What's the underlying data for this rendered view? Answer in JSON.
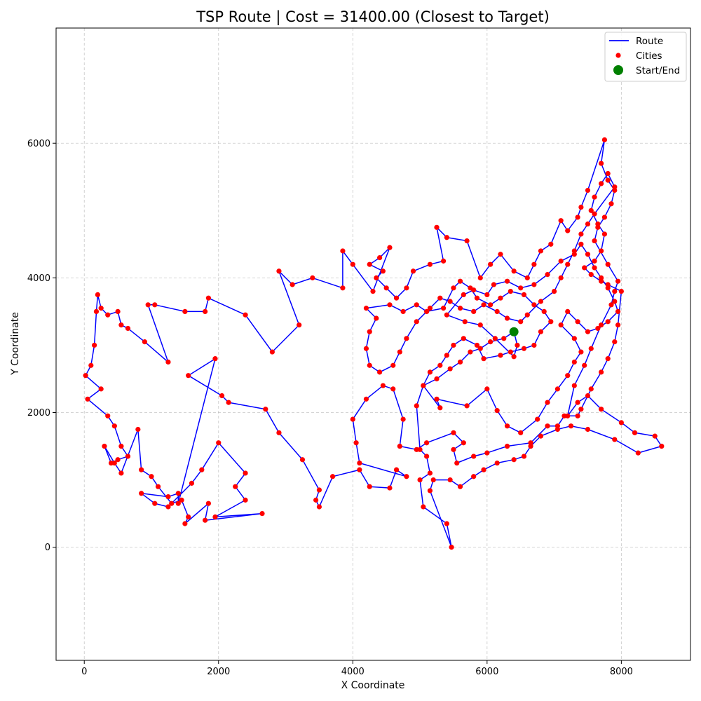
{
  "chart_data": {
    "type": "scatter",
    "title": "TSP Route | Cost = 31400.00 (Closest to Target)",
    "xlabel": "X Coordinate",
    "ylabel": "Y Coordinate",
    "xlim": [
      -420,
      9030
    ],
    "ylim": [
      -1680,
      7710
    ],
    "xticks": [
      0,
      2000,
      4000,
      6000,
      8000
    ],
    "yticks": [
      0,
      2000,
      4000,
      6000
    ],
    "grid": true,
    "legend_position": "top-right",
    "colors": {
      "route": "#0000ff",
      "cities": "#ff0000",
      "start": "#008000",
      "grid": "#b0b0b0"
    },
    "legend": [
      {
        "label": "Route",
        "kind": "line",
        "color": "#0000ff"
      },
      {
        "label": "Cities",
        "kind": "dot",
        "color": "#ff0000"
      },
      {
        "label": "Start/End",
        "kind": "bigdot",
        "color": "#008000"
      }
    ],
    "start": [
      6400,
      3200
    ],
    "route": [
      [
        6400,
        3200
      ],
      [
        6450,
        3000
      ],
      [
        6400,
        2830
      ],
      [
        6120,
        3100
      ],
      [
        5900,
        3300
      ],
      [
        5670,
        3350
      ],
      [
        5400,
        3450
      ],
      [
        5650,
        3750
      ],
      [
        5800,
        3820
      ],
      [
        6000,
        3750
      ],
      [
        6100,
        3900
      ],
      [
        6300,
        3950
      ],
      [
        6500,
        3850
      ],
      [
        6700,
        3900
      ],
      [
        6900,
        4050
      ],
      [
        7100,
        4250
      ],
      [
        7300,
        4350
      ],
      [
        7400,
        4500
      ],
      [
        7500,
        4350
      ],
      [
        7600,
        4150
      ],
      [
        7700,
        4000
      ],
      [
        7800,
        3850
      ],
      [
        7900,
        3650
      ],
      [
        7950,
        3500
      ],
      [
        7800,
        3350
      ],
      [
        7650,
        3250
      ],
      [
        7500,
        3200
      ],
      [
        7350,
        3350
      ],
      [
        7200,
        3500
      ],
      [
        7100,
        3300
      ],
      [
        7300,
        3100
      ],
      [
        7400,
        2900
      ],
      [
        7300,
        2750
      ],
      [
        7200,
        2550
      ],
      [
        7050,
        2350
      ],
      [
        6900,
        2150
      ],
      [
        6750,
        1900
      ],
      [
        6500,
        1700
      ],
      [
        6300,
        1800
      ],
      [
        6150,
        2030
      ],
      [
        6000,
        2350
      ],
      [
        5700,
        2100
      ],
      [
        5250,
        2200
      ],
      [
        5300,
        2070
      ],
      [
        5050,
        2400
      ],
      [
        4950,
        2100
      ],
      [
        5000,
        1450
      ],
      [
        5100,
        1350
      ],
      [
        5150,
        1100
      ],
      [
        5000,
        1000
      ],
      [
        5050,
        600
      ],
      [
        5400,
        350
      ],
      [
        5470,
        0
      ],
      [
        5150,
        840
      ],
      [
        5200,
        1000
      ],
      [
        5450,
        1000
      ],
      [
        5600,
        900
      ],
      [
        5800,
        1050
      ],
      [
        5950,
        1150
      ],
      [
        6150,
        1250
      ],
      [
        6400,
        1300
      ],
      [
        6550,
        1350
      ],
      [
        6650,
        1500
      ],
      [
        6800,
        1650
      ],
      [
        7050,
        1750
      ],
      [
        7250,
        1800
      ],
      [
        7500,
        1750
      ],
      [
        7900,
        1600
      ],
      [
        8250,
        1400
      ],
      [
        8600,
        1500
      ],
      [
        8500,
        1650
      ],
      [
        8200,
        1700
      ],
      [
        8000,
        1850
      ],
      [
        7700,
        2050
      ],
      [
        7500,
        2250
      ],
      [
        7350,
        2150
      ],
      [
        7200,
        1950
      ],
      [
        7300,
        2400
      ],
      [
        7450,
        2700
      ],
      [
        7550,
        2950
      ],
      [
        7700,
        3300
      ],
      [
        7850,
        3600
      ],
      [
        7900,
        3800
      ],
      [
        7950,
        3950
      ],
      [
        7800,
        4200
      ],
      [
        7600,
        4550
      ],
      [
        7650,
        4750
      ],
      [
        7750,
        4900
      ],
      [
        7850,
        5100
      ],
      [
        7900,
        5300
      ],
      [
        7800,
        5450
      ],
      [
        7700,
        5700
      ],
      [
        7750,
        6050
      ],
      [
        7500,
        5300
      ],
      [
        7400,
        5050
      ],
      [
        7350,
        4900
      ],
      [
        7200,
        4700
      ],
      [
        7100,
        4850
      ],
      [
        6950,
        4500
      ],
      [
        6800,
        4400
      ],
      [
        6700,
        4200
      ],
      [
        6600,
        4000
      ],
      [
        6400,
        4100
      ],
      [
        6200,
        4350
      ],
      [
        6050,
        4200
      ],
      [
        5900,
        4000
      ],
      [
        5700,
        4550
      ],
      [
        5400,
        4600
      ],
      [
        5250,
        4750
      ],
      [
        5350,
        4250
      ],
      [
        5150,
        4200
      ],
      [
        4900,
        4100
      ],
      [
        4800,
        3850
      ],
      [
        4650,
        3700
      ],
      [
        4500,
        3850
      ],
      [
        4350,
        4000
      ],
      [
        4450,
        4100
      ],
      [
        4250,
        4200
      ],
      [
        4400,
        4300
      ],
      [
        4550,
        4450
      ],
      [
        4300,
        3800
      ],
      [
        4000,
        4200
      ],
      [
        3850,
        4400
      ],
      [
        3850,
        3850
      ],
      [
        3400,
        4000
      ],
      [
        3100,
        3900
      ],
      [
        2900,
        4100
      ],
      [
        3200,
        3300
      ],
      [
        2800,
        2900
      ],
      [
        2400,
        3450
      ],
      [
        1850,
        3700
      ],
      [
        1800,
        3500
      ],
      [
        1500,
        3500
      ],
      [
        1050,
        3600
      ],
      [
        950,
        3600
      ],
      [
        1250,
        2750
      ],
      [
        900,
        3050
      ],
      [
        650,
        3250
      ],
      [
        550,
        3300
      ],
      [
        500,
        3500
      ],
      [
        350,
        3450
      ],
      [
        250,
        3550
      ],
      [
        200,
        3750
      ],
      [
        180,
        3500
      ],
      [
        150,
        3000
      ],
      [
        100,
        2700
      ],
      [
        20,
        2550
      ],
      [
        250,
        2350
      ],
      [
        50,
        2200
      ],
      [
        350,
        1950
      ],
      [
        450,
        1800
      ],
      [
        550,
        1500
      ],
      [
        650,
        1350
      ],
      [
        500,
        1300
      ],
      [
        400,
        1250
      ],
      [
        300,
        1500
      ],
      [
        450,
        1250
      ],
      [
        550,
        1100
      ],
      [
        800,
        1750
      ],
      [
        850,
        1150
      ],
      [
        1000,
        1050
      ],
      [
        1100,
        900
      ],
      [
        1300,
        650
      ],
      [
        1450,
        700
      ],
      [
        1550,
        450
      ],
      [
        1500,
        350
      ],
      [
        1850,
        650
      ],
      [
        1800,
        400
      ],
      [
        2650,
        500
      ],
      [
        1950,
        450
      ],
      [
        2400,
        700
      ],
      [
        2250,
        900
      ],
      [
        2400,
        1100
      ],
      [
        2000,
        1550
      ],
      [
        1750,
        1150
      ],
      [
        1600,
        950
      ],
      [
        1250,
        600
      ],
      [
        1050,
        650
      ],
      [
        850,
        800
      ],
      [
        1250,
        750
      ],
      [
        1400,
        800
      ],
      [
        1400,
        650
      ],
      [
        1950,
        2800
      ],
      [
        1550,
        2550
      ],
      [
        2050,
        2250
      ],
      [
        2150,
        2150
      ],
      [
        2700,
        2050
      ],
      [
        2900,
        1700
      ],
      [
        3250,
        1300
      ],
      [
        3500,
        850
      ],
      [
        3450,
        700
      ],
      [
        3500,
        600
      ],
      [
        3700,
        1050
      ],
      [
        4100,
        1150
      ],
      [
        4250,
        900
      ],
      [
        4550,
        880
      ],
      [
        4650,
        1150
      ],
      [
        4800,
        1050
      ],
      [
        4100,
        1250
      ],
      [
        4050,
        1550
      ],
      [
        4000,
        1900
      ],
      [
        4200,
        2200
      ],
      [
        4450,
        2400
      ],
      [
        4600,
        2350
      ],
      [
        4750,
        1900
      ],
      [
        4700,
        1500
      ],
      [
        4950,
        1450
      ],
      [
        5100,
        1550
      ],
      [
        5500,
        1700
      ],
      [
        5650,
        1550
      ],
      [
        5500,
        1450
      ],
      [
        5550,
        1250
      ],
      [
        5800,
        1350
      ],
      [
        6000,
        1400
      ],
      [
        6300,
        1500
      ],
      [
        6650,
        1550
      ],
      [
        6900,
        1800
      ],
      [
        7050,
        1800
      ],
      [
        7150,
        1950
      ],
      [
        7350,
        1950
      ],
      [
        7400,
        2050
      ],
      [
        7550,
        2350
      ],
      [
        7700,
        2600
      ],
      [
        7800,
        2800
      ],
      [
        7900,
        3050
      ],
      [
        7950,
        3300
      ],
      [
        8000,
        3800
      ],
      [
        7800,
        3900
      ],
      [
        7700,
        3950
      ],
      [
        7550,
        4050
      ],
      [
        7450,
        4150
      ],
      [
        7600,
        4250
      ],
      [
        7700,
        4400
      ],
      [
        7750,
        4650
      ],
      [
        7650,
        4800
      ],
      [
        7550,
        5000
      ],
      [
        7600,
        5200
      ],
      [
        7700,
        5400
      ],
      [
        7800,
        5550
      ],
      [
        7900,
        5350
      ],
      [
        7600,
        4950
      ],
      [
        7500,
        4800
      ],
      [
        7400,
        4650
      ],
      [
        7300,
        4400
      ],
      [
        7200,
        4200
      ],
      [
        7100,
        4000
      ],
      [
        7000,
        3800
      ],
      [
        6800,
        3650
      ],
      [
        6600,
        3450
      ],
      [
        6500,
        3350
      ],
      [
        6300,
        3400
      ],
      [
        6150,
        3500
      ],
      [
        5950,
        3600
      ],
      [
        5800,
        3500
      ],
      [
        5600,
        3550
      ],
      [
        5450,
        3650
      ],
      [
        5300,
        3700
      ],
      [
        5150,
        3550
      ],
      [
        4950,
        3350
      ],
      [
        4800,
        3100
      ],
      [
        4700,
        2900
      ],
      [
        4600,
        2700
      ],
      [
        4400,
        2600
      ],
      [
        4250,
        2700
      ],
      [
        4200,
        2950
      ],
      [
        4250,
        3200
      ],
      [
        4350,
        3400
      ],
      [
        4200,
        3550
      ],
      [
        4550,
        3600
      ],
      [
        4750,
        3500
      ],
      [
        4950,
        3600
      ],
      [
        5100,
        3500
      ],
      [
        5350,
        3550
      ],
      [
        5500,
        3850
      ],
      [
        5600,
        3950
      ],
      [
        5750,
        3850
      ],
      [
        5850,
        3700
      ],
      [
        6050,
        3600
      ],
      [
        6200,
        3700
      ],
      [
        6350,
        3800
      ],
      [
        6550,
        3750
      ],
      [
        6700,
        3600
      ],
      [
        6850,
        3500
      ],
      [
        6950,
        3350
      ],
      [
        6800,
        3200
      ],
      [
        6700,
        3000
      ],
      [
        6550,
        2950
      ],
      [
        6350,
        2900
      ],
      [
        6200,
        2850
      ],
      [
        5950,
        2800
      ],
      [
        5850,
        3000
      ],
      [
        5650,
        3100
      ],
      [
        5500,
        3000
      ],
      [
        5400,
        2850
      ],
      [
        5300,
        2700
      ],
      [
        5150,
        2600
      ],
      [
        5050,
        2400
      ],
      [
        5250,
        2500
      ],
      [
        5450,
        2650
      ],
      [
        5600,
        2750
      ],
      [
        5750,
        2900
      ],
      [
        5900,
        2950
      ],
      [
        6050,
        3050
      ],
      [
        6250,
        3100
      ],
      [
        6400,
        3200
      ]
    ]
  }
}
